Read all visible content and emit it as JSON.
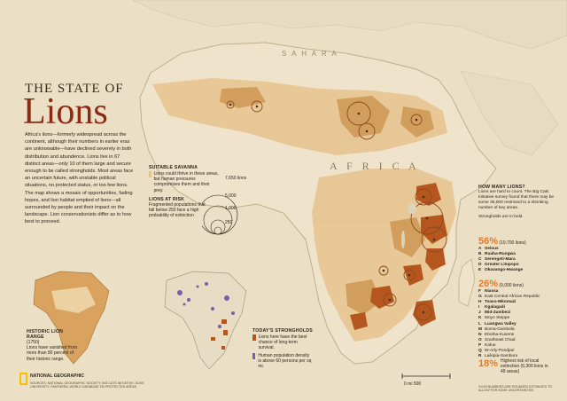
{
  "title": {
    "kicker": "THE STATE OF",
    "main": "Lions"
  },
  "intro": "Africa's lions—formerly widespread across the continent, although their numbers in earlier eras are unknowable—have declined severely in both distribution and abundence. Lions live in 67 distinct areas—only 10 of them large and secure enough to be called strongholds. Most areas face an uncertain future, with unstable political situations, no protected status, or too few lions. The map shows a mosaic of opportunities, fading hopes, and lion habitat emptied of lions—all surrounded by people and their impact on the landscape. Lion conservationists differ as to how best to proceed.",
  "map_labels": {
    "sahara": "S A H A R A",
    "africa": "A F R I C A"
  },
  "legend_suitable": {
    "heading": "SUITABLE SAVANNA",
    "text": "Lions could thrive in these areas, but human pressures compromises them and their prey.",
    "color": "#e9c58b"
  },
  "legend_risk": {
    "heading": "LIONS AT RISK",
    "text": "Fragmented populations that fall below 250 face a high probability of extinction",
    "color": "#c98a4a"
  },
  "circle_scale": [
    "7,650 lions",
    "5,000",
    "1,000",
    "250"
  ],
  "inset_historic": {
    "heading": "HISTORIC LION RANGE",
    "sub": "(1750)",
    "text": "Lions have vanished from more than 80 percent of their historic range.",
    "color": "#d9a35f"
  },
  "inset_today": {
    "heading": "TODAY'S STRONGHOLDS",
    "item1": "Lions here have the best chance of long-term survival.",
    "item2": "Human population density is above 60 persons per sq mi.",
    "color1": "#b5561f",
    "color2": "#7d5ca8"
  },
  "how_many": {
    "heading": "HOW MANY LIONS?",
    "text": "Lions are hard to count. The Big Cats Initiative survey found that there may be some 35,000 restricted to a shrinking number of key areas.",
    "note": "Strongholds are in bold."
  },
  "groups": [
    {
      "pct": "56%",
      "count": "(19,700 lions)",
      "items": [
        {
          "code": "A",
          "name": "Selous",
          "bold": true
        },
        {
          "code": "B",
          "name": "Ruaha-Rungwa",
          "bold": true
        },
        {
          "code": "C",
          "name": "Serengeti-Mara",
          "bold": true
        },
        {
          "code": "D",
          "name": "Greater Limpopo",
          "bold": true
        },
        {
          "code": "E",
          "name": "Okavango-Hwange",
          "bold": true
        }
      ]
    },
    {
      "pct": "26%",
      "count": "(9,000 lions)",
      "items": [
        {
          "code": "F",
          "name": "Niassa",
          "bold": true
        },
        {
          "code": "G",
          "name": "East Central African Republic",
          "bold": false
        },
        {
          "code": "H",
          "name": "Tsavo-Mkomazi",
          "bold": true
        },
        {
          "code": "I",
          "name": "Kgalagadi",
          "bold": true
        },
        {
          "code": "J",
          "name": "Mid-Zambezi",
          "bold": true
        },
        {
          "code": "K",
          "name": "Moyo Steppe",
          "bold": false
        },
        {
          "code": "L",
          "name": "Luangwa Valley",
          "bold": true
        },
        {
          "code": "M",
          "name": "Boma-Gambela",
          "bold": false
        },
        {
          "code": "N",
          "name": "Ebotha-Kunene",
          "bold": false
        },
        {
          "code": "O",
          "name": "Southeast Chad",
          "bold": false
        },
        {
          "code": "P",
          "name": "Kafue",
          "bold": false
        },
        {
          "code": "Q",
          "name": "W-Arly-Pendjari",
          "bold": false
        },
        {
          "code": "R",
          "name": "Laikipia-Samburu",
          "bold": false
        }
      ]
    },
    {
      "pct": "18%",
      "count": "",
      "items": [
        {
          "code": "",
          "name": "Highest risk of local extinction (6,300 lions in 49 areas)",
          "bold": false
        }
      ]
    }
  ],
  "credit": {
    "brand": "NATIONAL GEOGRAPHIC",
    "fine": "SOURCES: NATIONAL GEOGRAPHIC SOCIETY; BIG CATS INITIATIVE; DUKE UNIVERSITY; PANTHERA; WORLD DATABASE ON PROTECTED AREAS",
    "footnote": "*LION NUMBERS ARE ROUNDED ESTIMATES TO ALLOW FOR SOME UNCERTAINTIES"
  },
  "scale_bar": "0 mi 500",
  "colors": {
    "land": "#efe4cb",
    "sea": "#e9dfc6",
    "suitable": "#e6c38d",
    "risk": "#c98a4a",
    "stronghold": "#b5561f",
    "title": "#8c2a14",
    "accent": "#e37a2c"
  }
}
